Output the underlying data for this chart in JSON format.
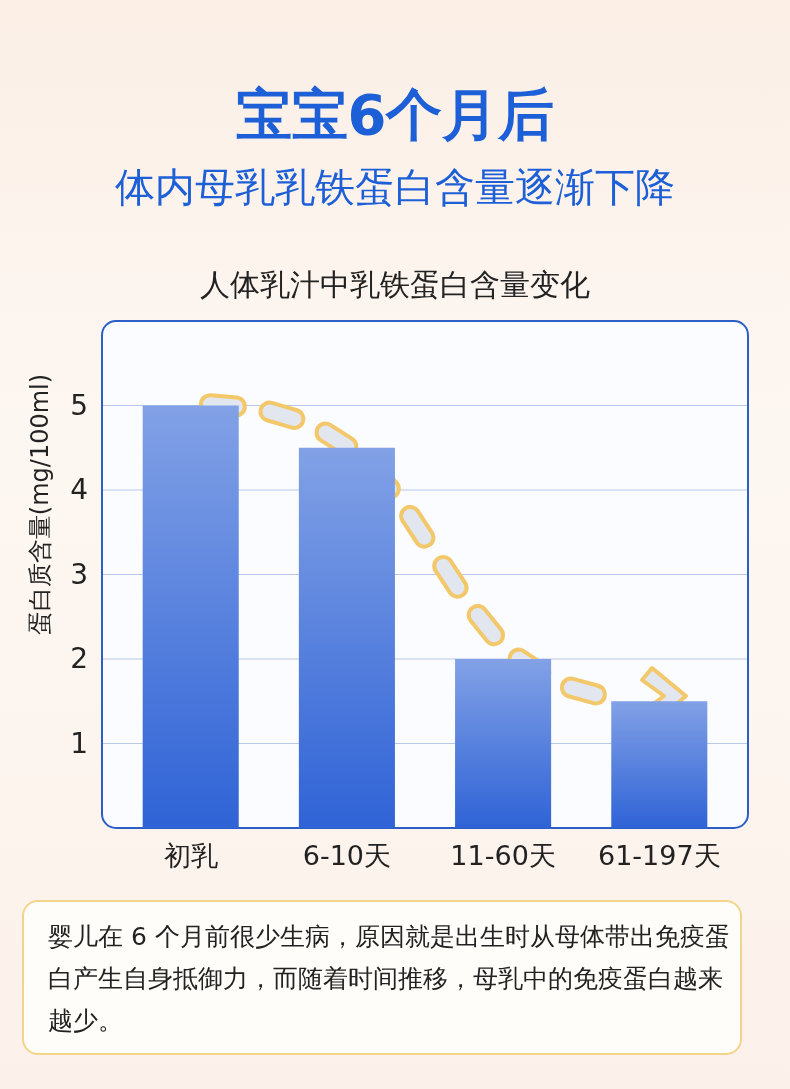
{
  "chart_data": {
    "type": "bar",
    "title": "宝宝6个月后",
    "subtitle": "体内母乳乳铁蛋白含量逐渐下降",
    "annotations": [
      "人体乳汁中乳铁蛋白含量变化",
      "婴儿在 6 个月前很少生病，原因就是出生时从母体带出免疫蛋白产生自身抵御力，而随着时间推移，母乳中的免疫蛋白越来越少。"
    ],
    "ylabel": "蛋白质含量(mg/100ml)",
    "categories": [
      "初乳",
      "6-10天",
      "11-60天",
      "61-197天"
    ],
    "values": [
      5,
      4.5,
      2,
      1.5
    ],
    "color": "#2f63d6",
    "ylim": [
      0,
      6
    ],
    "yticks": [
      1,
      2,
      3,
      4,
      5
    ],
    "grid": "y"
  }
}
